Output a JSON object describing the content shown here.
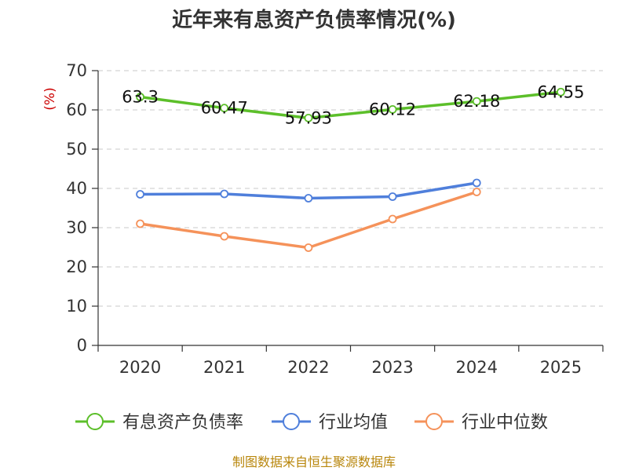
{
  "chart_data": {
    "type": "line",
    "title": "近年来有息资产负债率情况(%)",
    "ylabel": "(%)",
    "xlabel": "",
    "categories": [
      "2020",
      "2021",
      "2022",
      "2023",
      "2024",
      "2025"
    ],
    "ylim": [
      0,
      70
    ],
    "yticks": [
      0,
      10,
      20,
      30,
      40,
      50,
      60,
      70
    ],
    "grid": "horizontal dashed",
    "legend_position": "bottom",
    "series": [
      {
        "name": "有息资产负债率",
        "color": "#5cbf2a",
        "values": [
          63.3,
          60.47,
          57.93,
          60.12,
          62.18,
          64.55
        ],
        "labels": [
          "63.3",
          "60.47",
          "57.93",
          "60.12",
          "62.18",
          "64.55"
        ],
        "show_labels": true
      },
      {
        "name": "行业均值",
        "color": "#4f7fdb",
        "values": [
          38.5,
          38.6,
          37.5,
          37.9,
          41.4,
          null
        ],
        "show_labels": false
      },
      {
        "name": "行业中位数",
        "color": "#f5925a",
        "values": [
          31.0,
          27.8,
          24.9,
          32.2,
          39.1,
          null
        ],
        "show_labels": false
      }
    ]
  },
  "source": "制图数据来自恒生聚源数据库"
}
